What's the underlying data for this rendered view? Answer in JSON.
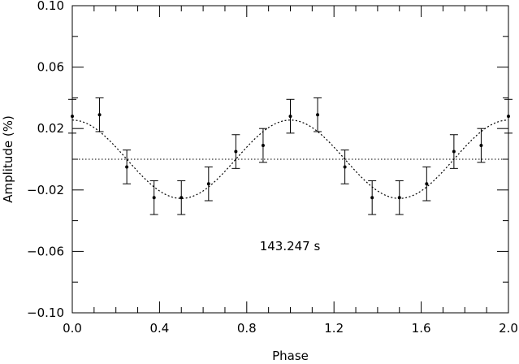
{
  "chart_data": {
    "type": "scatter",
    "xlabel": "Phase",
    "ylabel": "Amplitude (%)",
    "xlim": [
      0.0,
      2.0
    ],
    "ylim": [
      -0.1,
      0.1
    ],
    "x_major_ticks": [
      0.0,
      0.4,
      0.8,
      1.2,
      1.6,
      2.0
    ],
    "x_tick_labels": [
      "0.0",
      "0.4",
      "0.8",
      "1.2",
      "1.6",
      "2.0"
    ],
    "x_minor_step": 0.1,
    "y_major_ticks": [
      -0.1,
      -0.06,
      -0.02,
      0.02,
      0.06,
      0.1
    ],
    "y_tick_labels": [
      "−0.10",
      "−0.06",
      "−0.02",
      "0.02",
      "0.06",
      "0.10"
    ],
    "y_minor_step": 0.02,
    "annotation": "143.247 s",
    "grid": false,
    "zero_line": {
      "y": 0.0,
      "style": "dotted"
    },
    "model_curve": {
      "amplitude": 0.0255,
      "period": 1.0,
      "phase_of_max": 0.0,
      "style": "dotted"
    },
    "points": [
      {
        "x": 0.0,
        "y": 0.028,
        "err": 0.011
      },
      {
        "x": 0.125,
        "y": 0.029,
        "err": 0.011
      },
      {
        "x": 0.25,
        "y": -0.005,
        "err": 0.011
      },
      {
        "x": 0.375,
        "y": -0.025,
        "err": 0.011
      },
      {
        "x": 0.5,
        "y": -0.025,
        "err": 0.011
      },
      {
        "x": 0.625,
        "y": -0.016,
        "err": 0.011
      },
      {
        "x": 0.75,
        "y": 0.005,
        "err": 0.011
      },
      {
        "x": 0.875,
        "y": 0.009,
        "err": 0.011
      },
      {
        "x": 1.0,
        "y": 0.028,
        "err": 0.011
      },
      {
        "x": 1.125,
        "y": 0.029,
        "err": 0.011
      },
      {
        "x": 1.25,
        "y": -0.005,
        "err": 0.011
      },
      {
        "x": 1.375,
        "y": -0.025,
        "err": 0.011
      },
      {
        "x": 1.5,
        "y": -0.025,
        "err": 0.011
      },
      {
        "x": 1.625,
        "y": -0.016,
        "err": 0.011
      },
      {
        "x": 1.75,
        "y": 0.005,
        "err": 0.011
      },
      {
        "x": 1.875,
        "y": 0.009,
        "err": 0.011
      },
      {
        "x": 2.0,
        "y": 0.028,
        "err": 0.011
      }
    ]
  }
}
